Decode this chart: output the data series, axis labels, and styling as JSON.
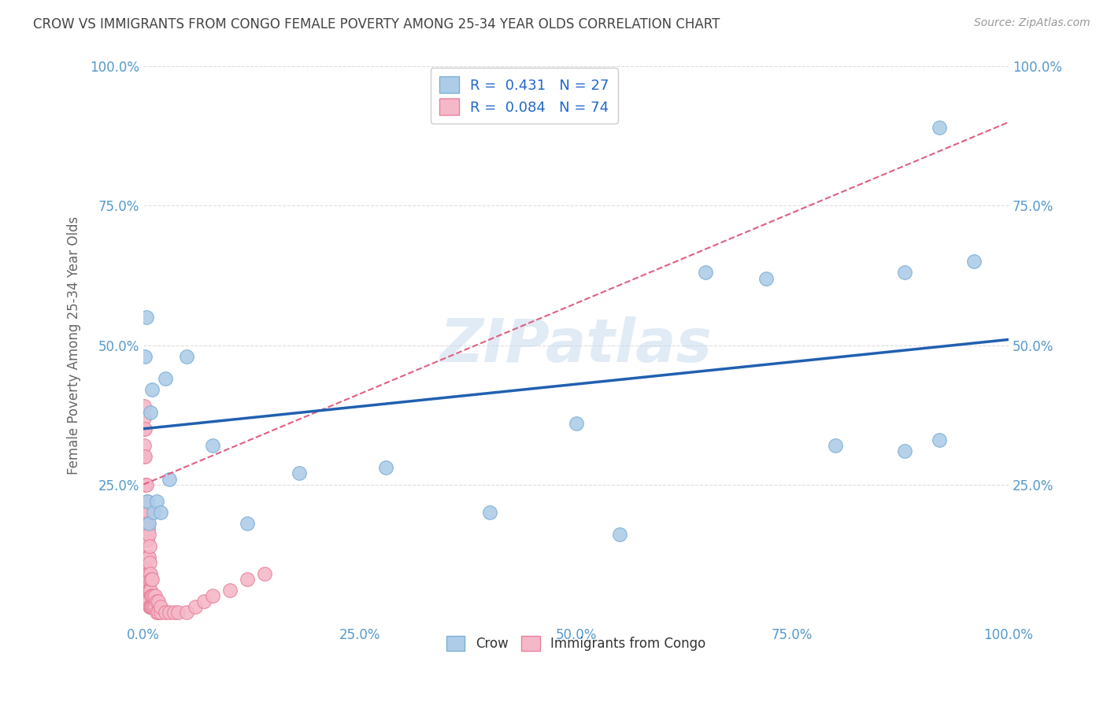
{
  "title": "CROW VS IMMIGRANTS FROM CONGO FEMALE POVERTY AMONG 25-34 YEAR OLDS CORRELATION CHART",
  "source": "Source: ZipAtlas.com",
  "ylabel": "Female Poverty Among 25-34 Year Olds",
  "crow_R": 0.431,
  "crow_N": 27,
  "congo_R": 0.084,
  "congo_N": 74,
  "crow_color": "#aecce8",
  "crow_edge_color": "#7aafd4",
  "congo_color": "#f5b8c8",
  "congo_edge_color": "#e8809a",
  "crow_line_color": "#2060b0",
  "congo_line_color": "#e06080",
  "watermark": "ZIPatlas",
  "crow_x": [
    0.002,
    0.003,
    0.004,
    0.006,
    0.008,
    0.01,
    0.012,
    0.015,
    0.02,
    0.025,
    0.03,
    0.05,
    0.08,
    0.12,
    0.18,
    0.28,
    0.4,
    0.5,
    0.55,
    0.65,
    0.72,
    0.8,
    0.88,
    0.88,
    0.92,
    0.92,
    0.96
  ],
  "crow_y": [
    0.48,
    0.55,
    0.22,
    0.18,
    0.38,
    0.42,
    0.2,
    0.22,
    0.2,
    0.44,
    0.26,
    0.48,
    0.32,
    0.18,
    0.27,
    0.28,
    0.2,
    0.36,
    0.16,
    0.63,
    0.62,
    0.32,
    0.31,
    0.63,
    0.33,
    0.89,
    0.65
  ],
  "congo_x": [
    0.001,
    0.001,
    0.001,
    0.001,
    0.001,
    0.001,
    0.001,
    0.001,
    0.002,
    0.002,
    0.002,
    0.002,
    0.002,
    0.002,
    0.002,
    0.002,
    0.003,
    0.003,
    0.003,
    0.003,
    0.003,
    0.003,
    0.004,
    0.004,
    0.004,
    0.004,
    0.004,
    0.004,
    0.004,
    0.005,
    0.005,
    0.005,
    0.005,
    0.005,
    0.006,
    0.006,
    0.006,
    0.006,
    0.006,
    0.007,
    0.007,
    0.007,
    0.007,
    0.007,
    0.008,
    0.008,
    0.008,
    0.009,
    0.009,
    0.009,
    0.01,
    0.01,
    0.01,
    0.012,
    0.012,
    0.013,
    0.013,
    0.015,
    0.015,
    0.017,
    0.017,
    0.02,
    0.02,
    0.025,
    0.03,
    0.035,
    0.04,
    0.05,
    0.06,
    0.07,
    0.08,
    0.1,
    0.12,
    0.14
  ],
  "congo_y": [
    0.3,
    0.32,
    0.35,
    0.37,
    0.39,
    0.08,
    0.1,
    0.12,
    0.05,
    0.08,
    0.1,
    0.15,
    0.2,
    0.25,
    0.3,
    0.35,
    0.05,
    0.08,
    0.1,
    0.15,
    0.2,
    0.25,
    0.05,
    0.07,
    0.09,
    0.12,
    0.15,
    0.18,
    0.22,
    0.04,
    0.06,
    0.09,
    0.12,
    0.17,
    0.04,
    0.06,
    0.09,
    0.12,
    0.16,
    0.03,
    0.06,
    0.08,
    0.11,
    0.14,
    0.03,
    0.06,
    0.09,
    0.03,
    0.05,
    0.08,
    0.03,
    0.05,
    0.08,
    0.03,
    0.05,
    0.03,
    0.05,
    0.02,
    0.04,
    0.02,
    0.04,
    0.02,
    0.03,
    0.02,
    0.02,
    0.02,
    0.02,
    0.02,
    0.03,
    0.04,
    0.05,
    0.06,
    0.08,
    0.09
  ],
  "xlim": [
    0.0,
    1.0
  ],
  "ylim": [
    0.0,
    1.0
  ],
  "xticks": [
    0.0,
    0.25,
    0.5,
    0.75,
    1.0
  ],
  "yticks": [
    0.0,
    0.25,
    0.5,
    0.75,
    1.0
  ],
  "xtick_labels": [
    "0.0%",
    "25.0%",
    "50.0%",
    "75.0%",
    "100.0%"
  ],
  "ytick_labels_left": [
    "",
    "25.0%",
    "50.0%",
    "75.0%",
    "100.0%"
  ],
  "ytick_labels_right": [
    "",
    "25.0%",
    "50.0%",
    "75.0%",
    "100.0%"
  ],
  "background_color": "#ffffff",
  "grid_color": "#dddddd",
  "title_color": "#444444",
  "axis_tick_color": "#5599cc",
  "legend_R_color": "#2266cc",
  "crow_line_intercept": 0.35,
  "crow_line_slope": 0.16,
  "congo_line_intercept": 0.25,
  "congo_line_slope": 0.65
}
